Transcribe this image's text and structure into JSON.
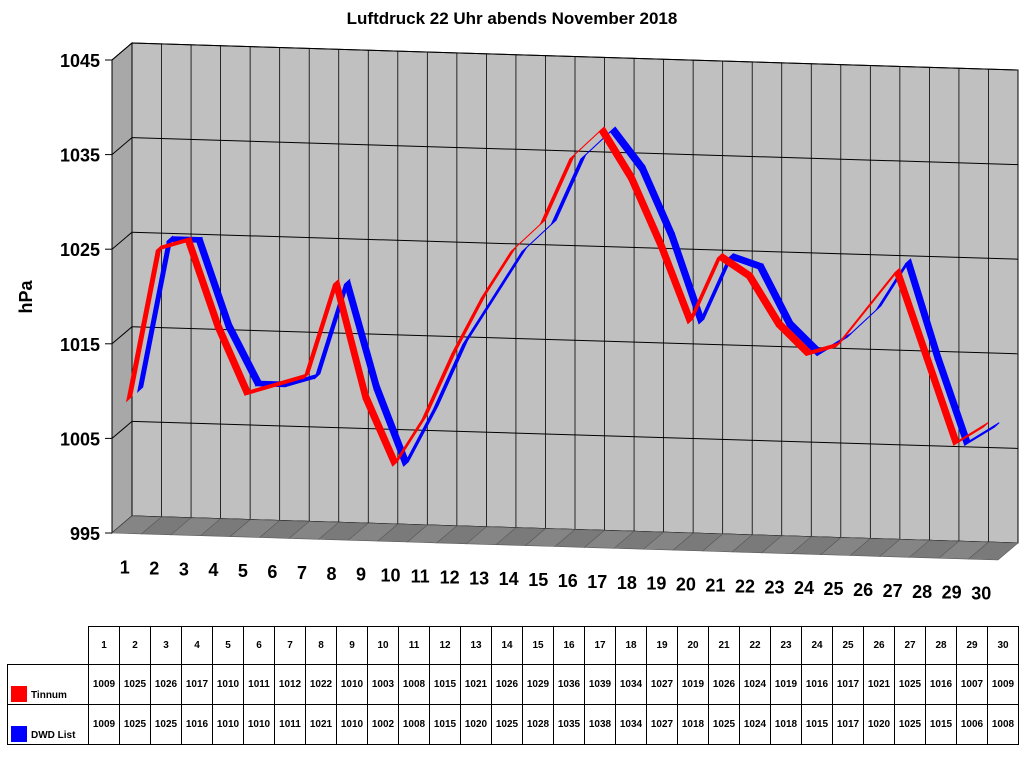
{
  "chart_data": {
    "type": "line",
    "title": "Luftdruck 22 Uhr abends November 2018",
    "ylabel": "hPa",
    "xlabel": "",
    "ylim": [
      995,
      1045
    ],
    "yticks": [
      995,
      1005,
      1015,
      1025,
      1035,
      1045
    ],
    "categories": [
      "1",
      "2",
      "3",
      "4",
      "5",
      "6",
      "7",
      "8",
      "9",
      "10",
      "11",
      "12",
      "13",
      "14",
      "15",
      "16",
      "17",
      "18",
      "19",
      "20",
      "21",
      "22",
      "23",
      "24",
      "25",
      "26",
      "27",
      "28",
      "29",
      "30"
    ],
    "grid": true,
    "style": "3d-ribbon",
    "series": [
      {
        "name": "Tinnum",
        "color": "#ff0000",
        "values": [
          1009,
          1025,
          1026,
          1017,
          1010,
          1011,
          1012,
          1022,
          1010,
          1003,
          1008,
          1015,
          1021,
          1026,
          1029,
          1036,
          1039,
          1034,
          1027,
          1019,
          1026,
          1024,
          1019,
          1016,
          1017,
          1021,
          1025,
          1016,
          1007,
          1009
        ]
      },
      {
        "name": "DWD List",
        "color": "#0000ff",
        "values": [
          1009,
          1025,
          1025,
          1016,
          1010,
          1010,
          1011,
          1021,
          1010,
          1002,
          1008,
          1015,
          1020,
          1025,
          1028,
          1035,
          1038,
          1034,
          1027,
          1018,
          1025,
          1024,
          1018,
          1015,
          1017,
          1020,
          1025,
          1015,
          1006,
          1008
        ]
      }
    ],
    "colors": {
      "wall": "#c0c0c0",
      "floor": "#808080",
      "grid": "#000000"
    }
  }
}
